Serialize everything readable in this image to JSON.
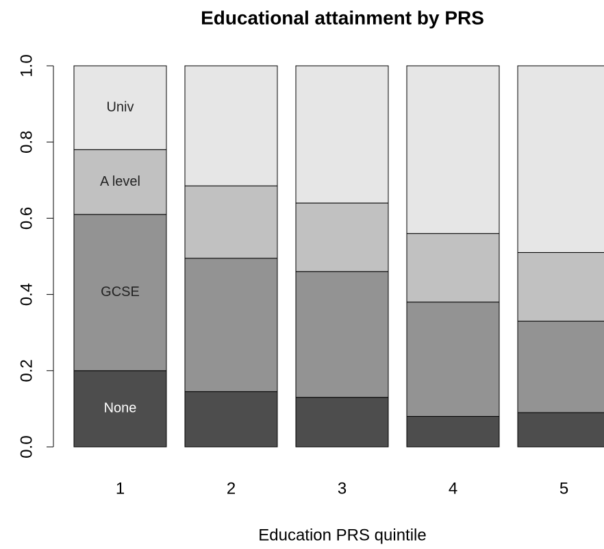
{
  "chart_data": {
    "type": "stacked_bar",
    "title": "Educational attainment by PRS",
    "xlabel": "Education PRS quintile",
    "categories": [
      "1",
      "2",
      "3",
      "4",
      "5"
    ],
    "series": [
      {
        "name": "None",
        "color": "#4d4d4d",
        "values": [
          0.2,
          0.145,
          0.13,
          0.08,
          0.09
        ]
      },
      {
        "name": "GCSE",
        "color": "#939393",
        "values": [
          0.41,
          0.35,
          0.33,
          0.3,
          0.24
        ]
      },
      {
        "name": "A level",
        "color": "#c1c1c1",
        "values": [
          0.17,
          0.19,
          0.18,
          0.18,
          0.18
        ]
      },
      {
        "name": "Univ",
        "color": "#e6e6e6",
        "values": [
          0.22,
          0.315,
          0.36,
          0.44,
          0.49
        ]
      }
    ],
    "ylim": [
      0,
      1
    ],
    "yticks": [
      {
        "value": 0,
        "label": "0.0"
      },
      0.2,
      0.4,
      0.6,
      0.8,
      {
        "value": 1,
        "label": "1.0"
      }
    ]
  }
}
